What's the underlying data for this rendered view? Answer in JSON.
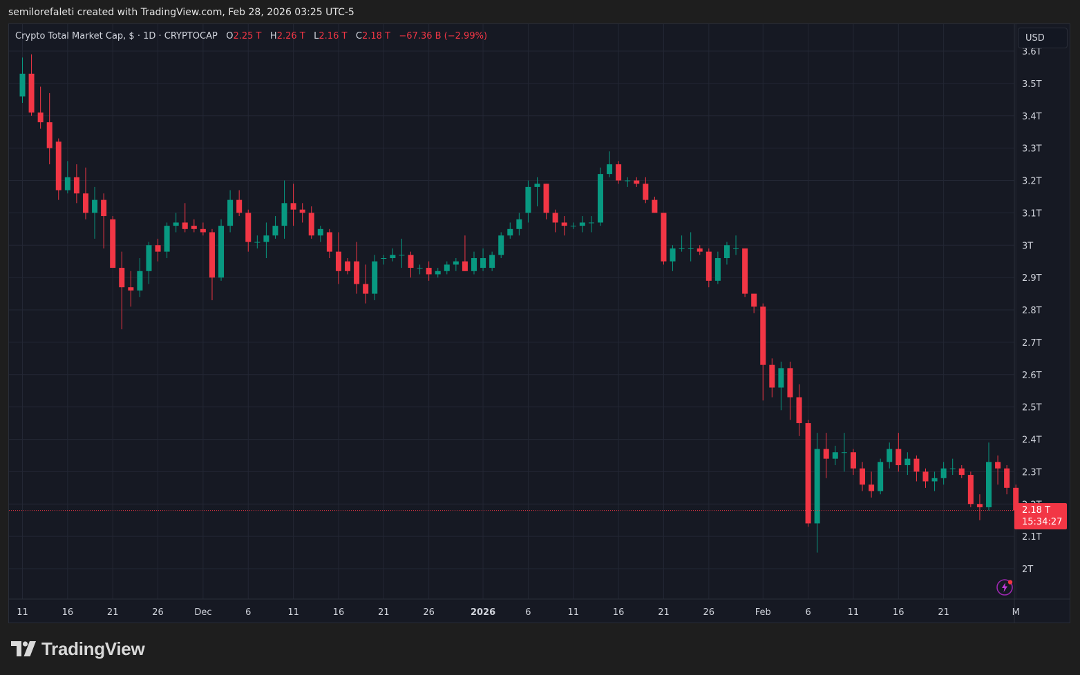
{
  "credit": "semilorefaleti created with TradingView.com, Feb 28, 2026 03:25 UTC-5",
  "legend": {
    "title": "Crypto Total Market Cap, $ · 1D · CRYPTOCAP",
    "o_label": "O",
    "o_value": "2.25 T",
    "h_label": "H",
    "h_value": "2.26 T",
    "l_label": "L",
    "l_value": "2.16 T",
    "c_label": "C",
    "c_value": "2.18 T",
    "change": "−67.36 B (−2.99%)"
  },
  "currency_button": "USD",
  "price_tag": {
    "price": "2.18 T",
    "countdown": "15:34:27"
  },
  "brand": "TradingView",
  "colors": {
    "up": "#089981",
    "down": "#f23645",
    "grid": "#232734",
    "axis_text": "#d1d4dc",
    "background": "#161923"
  },
  "chart_data": {
    "type": "candlestick",
    "y_unit": "T",
    "ylim": [
      1.93,
      3.62
    ],
    "y_ticks": [
      {
        "value": 2.0,
        "label": "2T"
      },
      {
        "value": 2.1,
        "label": "2.1T"
      },
      {
        "value": 2.2,
        "label": "2.2T"
      },
      {
        "value": 2.3,
        "label": "2.3T"
      },
      {
        "value": 2.4,
        "label": "2.4T"
      },
      {
        "value": 2.5,
        "label": "2.5T"
      },
      {
        "value": 2.6,
        "label": "2.6T"
      },
      {
        "value": 2.7,
        "label": "2.7T"
      },
      {
        "value": 2.8,
        "label": "2.8T"
      },
      {
        "value": 2.9,
        "label": "2.9T"
      },
      {
        "value": 3.0,
        "label": "3T"
      },
      {
        "value": 3.1,
        "label": "3.1T"
      },
      {
        "value": 3.2,
        "label": "3.2T"
      },
      {
        "value": 3.3,
        "label": "3.3T"
      },
      {
        "value": 3.4,
        "label": "3.4T"
      },
      {
        "value": 3.5,
        "label": "3.5T"
      },
      {
        "value": 3.6,
        "label": "3.6T"
      }
    ],
    "x_ticks": [
      {
        "date": "2025-11-11",
        "label": "11"
      },
      {
        "date": "2025-11-16",
        "label": "16"
      },
      {
        "date": "2025-11-21",
        "label": "21"
      },
      {
        "date": "2025-11-26",
        "label": "26"
      },
      {
        "date": "2025-12-01",
        "label": "Dec"
      },
      {
        "date": "2025-12-06",
        "label": "6"
      },
      {
        "date": "2025-12-11",
        "label": "11"
      },
      {
        "date": "2025-12-16",
        "label": "16"
      },
      {
        "date": "2025-12-21",
        "label": "21"
      },
      {
        "date": "2025-12-26",
        "label": "26"
      },
      {
        "date": "2026-01-01",
        "label": "2026"
      },
      {
        "date": "2026-01-06",
        "label": "6"
      },
      {
        "date": "2026-01-11",
        "label": "11"
      },
      {
        "date": "2026-01-16",
        "label": "16"
      },
      {
        "date": "2026-01-21",
        "label": "21"
      },
      {
        "date": "2026-01-26",
        "label": "26"
      },
      {
        "date": "2026-02-01",
        "label": "Feb"
      },
      {
        "date": "2026-02-06",
        "label": "6"
      },
      {
        "date": "2026-02-11",
        "label": "11"
      },
      {
        "date": "2026-02-16",
        "label": "16"
      },
      {
        "date": "2026-02-21",
        "label": "21"
      },
      {
        "date": "2026-03-01",
        "label": "M"
      }
    ],
    "last_price": 2.18,
    "candles": [
      {
        "date": "2025-11-11",
        "o": 3.46,
        "h": 3.58,
        "l": 3.44,
        "c": 3.53
      },
      {
        "date": "2025-11-12",
        "o": 3.53,
        "h": 3.59,
        "l": 3.4,
        "c": 3.41
      },
      {
        "date": "2025-11-13",
        "o": 3.41,
        "h": 3.49,
        "l": 3.36,
        "c": 3.38
      },
      {
        "date": "2025-11-14",
        "o": 3.38,
        "h": 3.47,
        "l": 3.25,
        "c": 3.3
      },
      {
        "date": "2025-11-15",
        "o": 3.32,
        "h": 3.33,
        "l": 3.14,
        "c": 3.17
      },
      {
        "date": "2025-11-16",
        "o": 3.17,
        "h": 3.26,
        "l": 3.16,
        "c": 3.21
      },
      {
        "date": "2025-11-17",
        "o": 3.21,
        "h": 3.25,
        "l": 3.13,
        "c": 3.16
      },
      {
        "date": "2025-11-18",
        "o": 3.16,
        "h": 3.24,
        "l": 3.08,
        "c": 3.1
      },
      {
        "date": "2025-11-19",
        "o": 3.1,
        "h": 3.18,
        "l": 3.02,
        "c": 3.14
      },
      {
        "date": "2025-11-20",
        "o": 3.14,
        "h": 3.16,
        "l": 2.99,
        "c": 3.09
      },
      {
        "date": "2025-11-21",
        "o": 3.08,
        "h": 3.09,
        "l": 2.93,
        "c": 2.93
      },
      {
        "date": "2025-11-22",
        "o": 2.93,
        "h": 2.98,
        "l": 2.74,
        "c": 2.87
      },
      {
        "date": "2025-11-23",
        "o": 2.87,
        "h": 2.92,
        "l": 2.81,
        "c": 2.86
      },
      {
        "date": "2025-11-24",
        "o": 2.86,
        "h": 2.96,
        "l": 2.84,
        "c": 2.92
      },
      {
        "date": "2025-11-25",
        "o": 2.92,
        "h": 3.01,
        "l": 2.88,
        "c": 3.0
      },
      {
        "date": "2025-11-26",
        "o": 3.0,
        "h": 3.02,
        "l": 2.95,
        "c": 2.98
      },
      {
        "date": "2025-11-27",
        "o": 2.98,
        "h": 3.07,
        "l": 2.96,
        "c": 3.06
      },
      {
        "date": "2025-11-28",
        "o": 3.06,
        "h": 3.1,
        "l": 3.04,
        "c": 3.07
      },
      {
        "date": "2025-11-29",
        "o": 3.07,
        "h": 3.13,
        "l": 3.04,
        "c": 3.05
      },
      {
        "date": "2025-11-30",
        "o": 3.06,
        "h": 3.08,
        "l": 3.04,
        "c": 3.05
      },
      {
        "date": "2025-12-01",
        "o": 3.05,
        "h": 3.07,
        "l": 3.03,
        "c": 3.04
      },
      {
        "date": "2025-12-02",
        "o": 3.04,
        "h": 3.05,
        "l": 2.83,
        "c": 2.9
      },
      {
        "date": "2025-12-03",
        "o": 2.9,
        "h": 3.08,
        "l": 2.89,
        "c": 3.06
      },
      {
        "date": "2025-12-04",
        "o": 3.06,
        "h": 3.17,
        "l": 3.04,
        "c": 3.14
      },
      {
        "date": "2025-12-05",
        "o": 3.14,
        "h": 3.17,
        "l": 3.09,
        "c": 3.1
      },
      {
        "date": "2025-12-06",
        "o": 3.1,
        "h": 3.11,
        "l": 2.98,
        "c": 3.01
      },
      {
        "date": "2025-12-07",
        "o": 3.01,
        "h": 3.03,
        "l": 2.99,
        "c": 3.01
      },
      {
        "date": "2025-12-08",
        "o": 3.01,
        "h": 3.07,
        "l": 2.96,
        "c": 3.03
      },
      {
        "date": "2025-12-09",
        "o": 3.03,
        "h": 3.09,
        "l": 3.02,
        "c": 3.06
      },
      {
        "date": "2025-12-10",
        "o": 3.06,
        "h": 3.2,
        "l": 3.02,
        "c": 3.13
      },
      {
        "date": "2025-12-11",
        "o": 3.13,
        "h": 3.19,
        "l": 3.06,
        "c": 3.11
      },
      {
        "date": "2025-12-12",
        "o": 3.11,
        "h": 3.13,
        "l": 3.07,
        "c": 3.1
      },
      {
        "date": "2025-12-13",
        "o": 3.1,
        "h": 3.12,
        "l": 3.02,
        "c": 3.03
      },
      {
        "date": "2025-12-14",
        "o": 3.03,
        "h": 3.06,
        "l": 3.01,
        "c": 3.05
      },
      {
        "date": "2025-12-15",
        "o": 3.04,
        "h": 3.05,
        "l": 2.96,
        "c": 2.98
      },
      {
        "date": "2025-12-16",
        "o": 2.98,
        "h": 3.04,
        "l": 2.88,
        "c": 2.92
      },
      {
        "date": "2025-12-17",
        "o": 2.95,
        "h": 2.96,
        "l": 2.91,
        "c": 2.92
      },
      {
        "date": "2025-12-18",
        "o": 2.95,
        "h": 3.01,
        "l": 2.85,
        "c": 2.88
      },
      {
        "date": "2025-12-19",
        "o": 2.88,
        "h": 2.94,
        "l": 2.82,
        "c": 2.85
      },
      {
        "date": "2025-12-20",
        "o": 2.85,
        "h": 2.97,
        "l": 2.83,
        "c": 2.95
      },
      {
        "date": "2025-12-21",
        "o": 2.96,
        "h": 2.97,
        "l": 2.94,
        "c": 2.96
      },
      {
        "date": "2025-12-22",
        "o": 2.96,
        "h": 2.99,
        "l": 2.95,
        "c": 2.97
      },
      {
        "date": "2025-12-23",
        "o": 2.97,
        "h": 3.02,
        "l": 2.93,
        "c": 2.97
      },
      {
        "date": "2025-12-24",
        "o": 2.97,
        "h": 2.98,
        "l": 2.9,
        "c": 2.93
      },
      {
        "date": "2025-12-25",
        "o": 2.93,
        "h": 2.94,
        "l": 2.91,
        "c": 2.93
      },
      {
        "date": "2025-12-26",
        "o": 2.93,
        "h": 2.95,
        "l": 2.89,
        "c": 2.91
      },
      {
        "date": "2025-12-27",
        "o": 2.91,
        "h": 2.93,
        "l": 2.9,
        "c": 2.92
      },
      {
        "date": "2025-12-28",
        "o": 2.92,
        "h": 2.95,
        "l": 2.91,
        "c": 2.94
      },
      {
        "date": "2025-12-29",
        "o": 2.94,
        "h": 2.96,
        "l": 2.92,
        "c": 2.95
      },
      {
        "date": "2025-12-30",
        "o": 2.95,
        "h": 3.03,
        "l": 2.92,
        "c": 2.92
      },
      {
        "date": "2025-12-31",
        "o": 2.92,
        "h": 2.98,
        "l": 2.91,
        "c": 2.96
      },
      {
        "date": "2026-01-01",
        "o": 2.93,
        "h": 2.99,
        "l": 2.92,
        "c": 2.96
      },
      {
        "date": "2026-01-02",
        "o": 2.93,
        "h": 2.98,
        "l": 2.92,
        "c": 2.97
      },
      {
        "date": "2026-01-03",
        "o": 2.97,
        "h": 3.04,
        "l": 2.96,
        "c": 3.03
      },
      {
        "date": "2026-01-04",
        "o": 3.03,
        "h": 3.07,
        "l": 3.02,
        "c": 3.05
      },
      {
        "date": "2026-01-05",
        "o": 3.05,
        "h": 3.1,
        "l": 3.03,
        "c": 3.08
      },
      {
        "date": "2026-01-06",
        "o": 3.1,
        "h": 3.2,
        "l": 3.07,
        "c": 3.18
      },
      {
        "date": "2026-01-07",
        "o": 3.18,
        "h": 3.21,
        "l": 3.12,
        "c": 3.19
      },
      {
        "date": "2026-01-08",
        "o": 3.19,
        "h": 3.19,
        "l": 3.08,
        "c": 3.1
      },
      {
        "date": "2026-01-09",
        "o": 3.1,
        "h": 3.11,
        "l": 3.04,
        "c": 3.07
      },
      {
        "date": "2026-01-10",
        "o": 3.07,
        "h": 3.09,
        "l": 3.03,
        "c": 3.06
      },
      {
        "date": "2026-01-11",
        "o": 3.06,
        "h": 3.07,
        "l": 3.05,
        "c": 3.06
      },
      {
        "date": "2026-01-12",
        "o": 3.06,
        "h": 3.09,
        "l": 3.04,
        "c": 3.07
      },
      {
        "date": "2026-01-13",
        "o": 3.07,
        "h": 3.09,
        "l": 3.04,
        "c": 3.07
      },
      {
        "date": "2026-01-14",
        "o": 3.07,
        "h": 3.24,
        "l": 3.06,
        "c": 3.22
      },
      {
        "date": "2026-01-15",
        "o": 3.22,
        "h": 3.29,
        "l": 3.21,
        "c": 3.25
      },
      {
        "date": "2026-01-16",
        "o": 3.25,
        "h": 3.26,
        "l": 3.19,
        "c": 3.2
      },
      {
        "date": "2026-01-17",
        "o": 3.2,
        "h": 3.21,
        "l": 3.18,
        "c": 3.2
      },
      {
        "date": "2026-01-18",
        "o": 3.2,
        "h": 3.21,
        "l": 3.18,
        "c": 3.19
      },
      {
        "date": "2026-01-19",
        "o": 3.19,
        "h": 3.21,
        "l": 3.13,
        "c": 3.14
      },
      {
        "date": "2026-01-20",
        "o": 3.14,
        "h": 3.15,
        "l": 3.1,
        "c": 3.1
      },
      {
        "date": "2026-01-21",
        "o": 3.1,
        "h": 3.1,
        "l": 2.94,
        "c": 2.95
      },
      {
        "date": "2026-01-22",
        "o": 2.95,
        "h": 3.0,
        "l": 2.92,
        "c": 2.99
      },
      {
        "date": "2026-01-23",
        "o": 2.99,
        "h": 3.03,
        "l": 2.98,
        "c": 2.99
      },
      {
        "date": "2026-01-24",
        "o": 2.99,
        "h": 3.04,
        "l": 2.95,
        "c": 2.99
      },
      {
        "date": "2026-01-25",
        "o": 2.99,
        "h": 3.0,
        "l": 2.97,
        "c": 2.98
      },
      {
        "date": "2026-01-26",
        "o": 2.98,
        "h": 2.99,
        "l": 2.87,
        "c": 2.89
      },
      {
        "date": "2026-01-27",
        "o": 2.89,
        "h": 2.98,
        "l": 2.88,
        "c": 2.96
      },
      {
        "date": "2026-01-28",
        "o": 2.96,
        "h": 3.01,
        "l": 2.94,
        "c": 3.0
      },
      {
        "date": "2026-01-29",
        "o": 2.99,
        "h": 3.03,
        "l": 2.97,
        "c": 2.99
      },
      {
        "date": "2026-01-30",
        "o": 2.99,
        "h": 2.99,
        "l": 2.84,
        "c": 2.85
      },
      {
        "date": "2026-01-31",
        "o": 2.85,
        "h": 2.85,
        "l": 2.79,
        "c": 2.81
      },
      {
        "date": "2026-02-01",
        "o": 2.81,
        "h": 2.82,
        "l": 2.52,
        "c": 2.63
      },
      {
        "date": "2026-02-02",
        "o": 2.63,
        "h": 2.65,
        "l": 2.53,
        "c": 2.56
      },
      {
        "date": "2026-02-03",
        "o": 2.56,
        "h": 2.64,
        "l": 2.49,
        "c": 2.62
      },
      {
        "date": "2026-02-04",
        "o": 2.62,
        "h": 2.64,
        "l": 2.46,
        "c": 2.53
      },
      {
        "date": "2026-02-05",
        "o": 2.53,
        "h": 2.57,
        "l": 2.41,
        "c": 2.45
      },
      {
        "date": "2026-02-06",
        "o": 2.45,
        "h": 2.46,
        "l": 2.13,
        "c": 2.14
      },
      {
        "date": "2026-02-07",
        "o": 2.14,
        "h": 2.42,
        "l": 2.05,
        "c": 2.37
      },
      {
        "date": "2026-02-08",
        "o": 2.37,
        "h": 2.42,
        "l": 2.28,
        "c": 2.34
      },
      {
        "date": "2026-02-09",
        "o": 2.34,
        "h": 2.38,
        "l": 2.32,
        "c": 2.36
      },
      {
        "date": "2026-02-10",
        "o": 2.36,
        "h": 2.42,
        "l": 2.3,
        "c": 2.36
      },
      {
        "date": "2026-02-11",
        "o": 2.36,
        "h": 2.37,
        "l": 2.29,
        "c": 2.31
      },
      {
        "date": "2026-02-12",
        "o": 2.31,
        "h": 2.33,
        "l": 2.24,
        "c": 2.26
      },
      {
        "date": "2026-02-13",
        "o": 2.26,
        "h": 2.3,
        "l": 2.22,
        "c": 2.24
      },
      {
        "date": "2026-02-14",
        "o": 2.24,
        "h": 2.34,
        "l": 2.23,
        "c": 2.33
      },
      {
        "date": "2026-02-15",
        "o": 2.33,
        "h": 2.39,
        "l": 2.31,
        "c": 2.37
      },
      {
        "date": "2026-02-16",
        "o": 2.37,
        "h": 2.42,
        "l": 2.3,
        "c": 2.32
      },
      {
        "date": "2026-02-17",
        "o": 2.32,
        "h": 2.36,
        "l": 2.29,
        "c": 2.34
      },
      {
        "date": "2026-02-18",
        "o": 2.34,
        "h": 2.35,
        "l": 2.27,
        "c": 2.3
      },
      {
        "date": "2026-02-19",
        "o": 2.3,
        "h": 2.31,
        "l": 2.25,
        "c": 2.27
      },
      {
        "date": "2026-02-20",
        "o": 2.27,
        "h": 2.3,
        "l": 2.24,
        "c": 2.28
      },
      {
        "date": "2026-02-21",
        "o": 2.28,
        "h": 2.33,
        "l": 2.26,
        "c": 2.31
      },
      {
        "date": "2026-02-22",
        "o": 2.31,
        "h": 2.34,
        "l": 2.29,
        "c": 2.31
      },
      {
        "date": "2026-02-23",
        "o": 2.31,
        "h": 2.32,
        "l": 2.28,
        "c": 2.29
      },
      {
        "date": "2026-02-24",
        "o": 2.29,
        "h": 2.3,
        "l": 2.19,
        "c": 2.2
      },
      {
        "date": "2026-02-25",
        "o": 2.2,
        "h": 2.23,
        "l": 2.15,
        "c": 2.19
      },
      {
        "date": "2026-02-26",
        "o": 2.19,
        "h": 2.39,
        "l": 2.18,
        "c": 2.33
      },
      {
        "date": "2026-02-27",
        "o": 2.33,
        "h": 2.35,
        "l": 2.26,
        "c": 2.31
      },
      {
        "date": "2026-02-28",
        "o": 2.31,
        "h": 2.32,
        "l": 2.23,
        "c": 2.25
      },
      {
        "date": "2026-03-01",
        "o": 2.25,
        "h": 2.26,
        "l": 2.16,
        "c": 2.18
      }
    ]
  }
}
